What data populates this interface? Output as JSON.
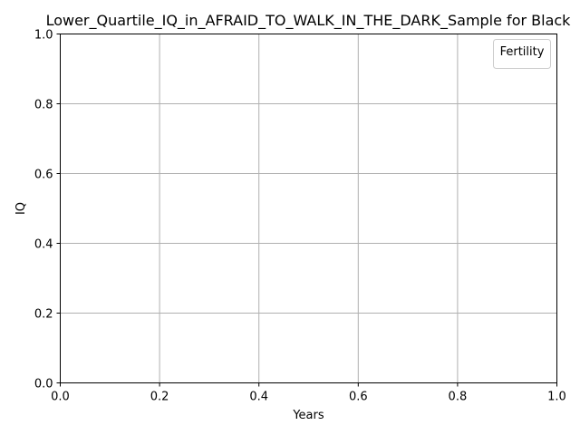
{
  "chart_data": {
    "type": "line",
    "title": "Lower_Quartile_IQ_in_AFRAID_TO_WALK_IN_THE_DARK_Sample for Black",
    "xlabel": "Years",
    "ylabel": "IQ",
    "xlim": [
      0.0,
      1.0
    ],
    "ylim": [
      0.0,
      1.0
    ],
    "x_ticks": [
      0.0,
      0.2,
      0.4,
      0.6,
      0.8,
      1.0
    ],
    "y_ticks": [
      0.0,
      0.2,
      0.4,
      0.6,
      0.8,
      1.0
    ],
    "x_tick_labels": [
      "0.0",
      "0.2",
      "0.4",
      "0.6",
      "0.8",
      "1.0"
    ],
    "y_tick_labels": [
      "0.0",
      "0.2",
      "0.4",
      "0.6",
      "0.8",
      "1.0"
    ],
    "grid": true,
    "legend": {
      "title": "Fertility",
      "placement": "top-right",
      "entries": []
    },
    "series": []
  },
  "colors": {
    "grid": "#b0b0b0",
    "axis": "#000000",
    "background": "#ffffff",
    "legend_border": "#cccccc"
  }
}
